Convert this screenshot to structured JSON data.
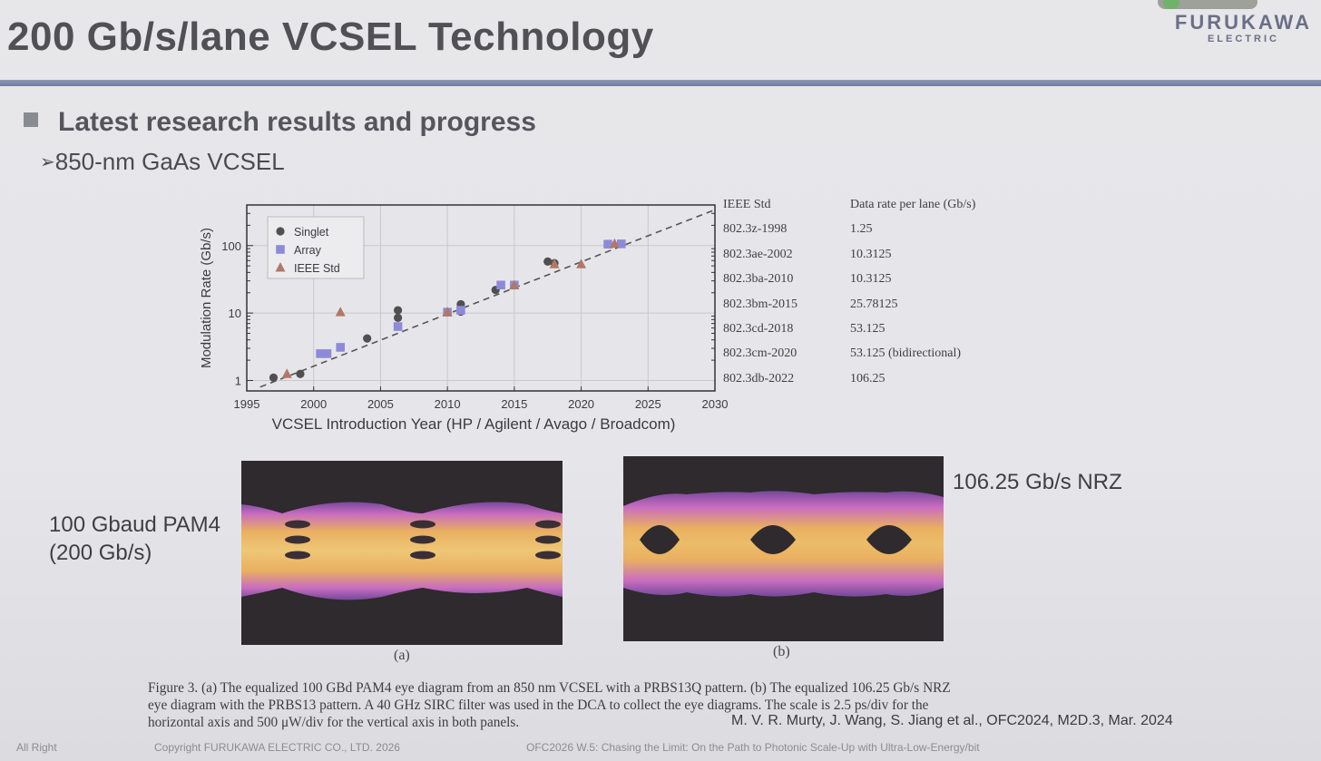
{
  "slide": {
    "title": "200 Gb/s/lane VCSEL Technology",
    "logo_line1": "FURUKAWA",
    "logo_line2": "ELECTRIC",
    "bullet1": "Latest research results and progress",
    "bullet2": "850-nm GaAs VCSEL"
  },
  "chart_data": {
    "type": "scatter",
    "xlabel": "VCSEL Introduction Year (HP / Agilent / Avago / Broadcom)",
    "ylabel": "Modulation Rate (Gb/s)",
    "xlim": [
      1995,
      2030
    ],
    "ylim": [
      0.7,
      400
    ],
    "yscale": "log",
    "xticks": [
      "1995",
      "2000",
      "2005",
      "2010",
      "2015",
      "2020",
      "2025",
      "2030"
    ],
    "yticks": [
      "1",
      "10",
      "100"
    ],
    "grid": true,
    "legend_position": "top-left",
    "trend_line": {
      "style": "dashed",
      "from": [
        1996,
        0.8
      ],
      "to": [
        2030,
        340
      ]
    },
    "series": [
      {
        "name": "Singlet",
        "marker": "circle",
        "color": "#505050",
        "points": [
          [
            1997,
            1.1
          ],
          [
            1999,
            1.25
          ],
          [
            2004,
            4.2
          ],
          [
            2006.3,
            8.5
          ],
          [
            2006.3,
            11
          ],
          [
            2011,
            10.5
          ],
          [
            2011,
            13.5
          ],
          [
            2013.6,
            22
          ],
          [
            2017.5,
            58
          ],
          [
            2018,
            55
          ]
        ]
      },
      {
        "name": "Array",
        "marker": "square",
        "color": "#8f8ad8",
        "points": [
          [
            2000.5,
            2.5
          ],
          [
            2001,
            2.5
          ],
          [
            2002,
            3.1
          ],
          [
            2006.3,
            6.3
          ],
          [
            2010,
            10.3
          ],
          [
            2011,
            11
          ],
          [
            2014,
            26
          ],
          [
            2015,
            26
          ],
          [
            2022,
            105
          ],
          [
            2023,
            106
          ]
        ]
      },
      {
        "name": "IEEE Std",
        "marker": "triangle",
        "color": "#b07868",
        "points": [
          [
            1998,
            1.25
          ],
          [
            2002,
            10.3125
          ],
          [
            2010,
            10.3125
          ],
          [
            2015,
            25.78125
          ],
          [
            2018,
            53.125
          ],
          [
            2020,
            53.125
          ],
          [
            2022.5,
            106.25
          ]
        ]
      }
    ]
  },
  "ieee_table": {
    "headers": [
      "IEEE Std",
      "Data rate per lane (Gb/s)"
    ],
    "rows": [
      [
        "802.3z-1998",
        "1.25"
      ],
      [
        "802.3ae-2002",
        "10.3125"
      ],
      [
        "802.3ba-2010",
        "10.3125"
      ],
      [
        "802.3bm-2015",
        "25.78125"
      ],
      [
        "802.3cd-2018",
        "53.125"
      ],
      [
        "802.3cm-2020",
        "53.125 (bidirectional)"
      ],
      [
        "802.3db-2022",
        "106.25"
      ]
    ]
  },
  "eyes": {
    "a_label_line1": "100 Gbaud PAM4",
    "a_label_line2": "(200 Gb/s)",
    "b_label": "106.25 Gb/s NRZ",
    "a_sub": "(a)",
    "b_sub": "(b)"
  },
  "caption": {
    "line1": "Figure 3. (a) The equalized 100 GBd PAM4 eye diagram from an 850 nm VCSEL with a PRBS13Q pattern. (b) The equalized 106.25 Gb/s NRZ",
    "line2": "eye diagram with the PRBS13 pattern. A 40 GHz SIRC filter was used in the DCA to collect the eye diagrams. The scale is 2.5 ps/div for the",
    "line3": "horizontal axis and 500 μW/div for the vertical axis in both panels."
  },
  "citation": "M. V. R. Murty, J. Wang, S. Jiang et al., OFC2024, M2D.3, Mar. 2024",
  "footer": {
    "left": "All Right",
    "copyright": "Copyright FURUKAWA ELECTRIC CO., LTD. 2026",
    "talk": "OFC2026 W.5: Chasing the Limit: On the Path to Photonic Scale-Up with Ultra-Low-Energy/bit"
  },
  "colors": {
    "title": "#505055",
    "rule": "#7783a8",
    "eye_bg": "#2e2a2e",
    "eye_core": "#f6c46c",
    "eye_edge": "#c06cd0"
  }
}
